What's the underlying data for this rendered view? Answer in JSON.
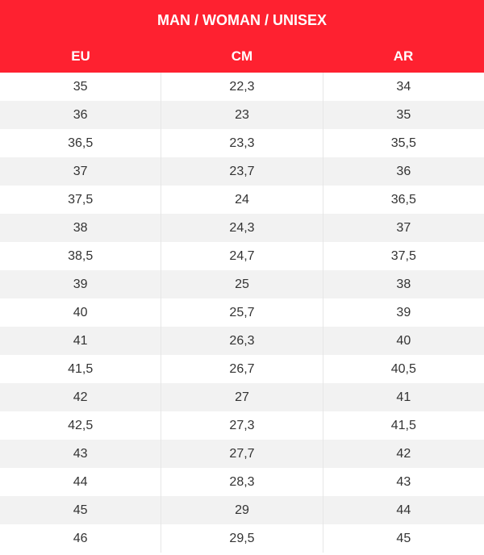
{
  "table": {
    "title": "MAN / WOMAN / UNISEX",
    "columns": [
      "EU",
      "CM",
      "AR"
    ],
    "rows": [
      [
        "35",
        "22,3",
        "34"
      ],
      [
        "36",
        "23",
        "35"
      ],
      [
        "36,5",
        "23,3",
        "35,5"
      ],
      [
        "37",
        "23,7",
        "36"
      ],
      [
        "37,5",
        "24",
        "36,5"
      ],
      [
        "38",
        "24,3",
        "37"
      ],
      [
        "38,5",
        "24,7",
        "37,5"
      ],
      [
        "39",
        "25",
        "38"
      ],
      [
        "40",
        "25,7",
        "39"
      ],
      [
        "41",
        "26,3",
        "40"
      ],
      [
        "41,5",
        "26,7",
        "40,5"
      ],
      [
        "42",
        "27",
        "41"
      ],
      [
        "42,5",
        "27,3",
        "41,5"
      ],
      [
        "43",
        "27,7",
        "42"
      ],
      [
        "44",
        "28,3",
        "43"
      ],
      [
        "45",
        "29",
        "44"
      ],
      [
        "46",
        "29,5",
        "45"
      ]
    ]
  }
}
